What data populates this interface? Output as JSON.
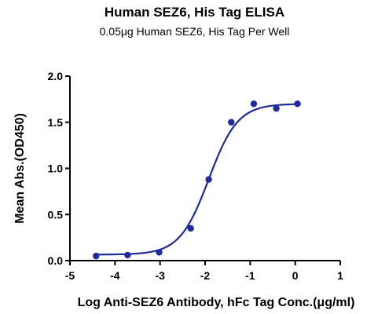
{
  "chart_data": {
    "type": "scatter",
    "title": "Human SEZ6, His Tag ELISA",
    "subtitle": "0.05μg Human SEZ6, His Tag Per Well",
    "xlabel": "Log Anti-SEZ6 Antibody, hFc Tag Conc.(μg/ml)",
    "ylabel": "Mean Abs.(OD450)",
    "xlim": [
      -5,
      1
    ],
    "ylim": [
      0,
      2.0
    ],
    "xticks": [
      -5,
      -4,
      -3,
      -2,
      -1,
      0,
      1
    ],
    "yticks": [
      0.0,
      0.5,
      1.0,
      1.5,
      2.0
    ],
    "xtick_labels": [
      "-5",
      "-4",
      "-3",
      "-2",
      "-1",
      "0",
      "1"
    ],
    "ytick_labels": [
      "0.0",
      "0.5",
      "1.0",
      "1.5",
      "2.0"
    ],
    "grid": false,
    "series": [
      {
        "color": "#1f2a9c",
        "points": [
          {
            "x": -4.42,
            "y": 0.05
          },
          {
            "x": -3.72,
            "y": 0.06
          },
          {
            "x": -3.02,
            "y": 0.09
          },
          {
            "x": -2.32,
            "y": 0.35
          },
          {
            "x": -1.92,
            "y": 0.88
          },
          {
            "x": -1.42,
            "y": 1.5
          },
          {
            "x": -0.92,
            "y": 1.7
          },
          {
            "x": -0.42,
            "y": 1.65
          },
          {
            "x": 0.05,
            "y": 1.7
          }
        ],
        "fit": {
          "bottom": 0.065,
          "top": 1.7,
          "logEC50": -1.92,
          "hill": 1.35,
          "x_from": -4.42,
          "x_to": 0.05
        }
      }
    ]
  }
}
